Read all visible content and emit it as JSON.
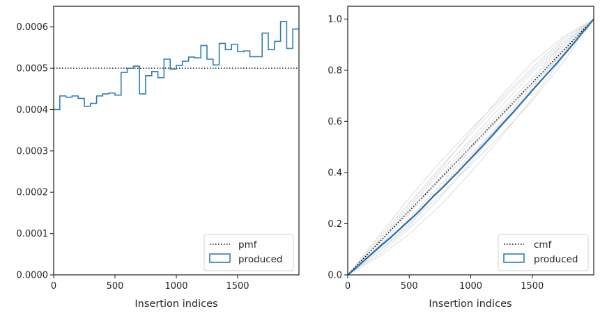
{
  "chart_data": [
    {
      "type": "step",
      "xlabel": "Insertion indices",
      "ylabel": "",
      "xlim": [
        0,
        2000
      ],
      "ylim": [
        0,
        0.00065
      ],
      "xticks": [
        0,
        500,
        1000,
        1500
      ],
      "xtick_labels": [
        "0",
        "500",
        "1000",
        "1500"
      ],
      "yticks": [
        0,
        0.0001,
        0.0002,
        0.0003,
        0.0004,
        0.0005,
        0.0006
      ],
      "ytick_labels": [
        "0.0000",
        "0.0001",
        "0.0002",
        "0.0003",
        "0.0004",
        "0.0005",
        "0.0006"
      ],
      "legend_position": "lower-right",
      "pmf": {
        "name": "pmf",
        "value": 0.0005,
        "style": "dotted",
        "color": "#000000"
      },
      "produced": {
        "name": "produced",
        "color": "#2f7fb3",
        "bin_width": 50,
        "values": [
          0.0004,
          0.000433,
          0.00043,
          0.000433,
          0.000427,
          0.000408,
          0.000415,
          0.000433,
          0.000438,
          0.00044,
          0.000435,
          0.00049,
          0.0005,
          0.000505,
          0.000438,
          0.000482,
          0.000492,
          0.000477,
          0.000522,
          0.000498,
          0.000507,
          0.000517,
          0.000527,
          0.000525,
          0.000555,
          0.000522,
          0.000508,
          0.00056,
          0.000545,
          0.000558,
          0.00054,
          0.000542,
          0.000528,
          0.000528,
          0.000585,
          0.000545,
          0.000565,
          0.000613,
          0.000548,
          0.000595
        ]
      }
    },
    {
      "type": "line",
      "xlabel": "Insertion indices",
      "ylabel": "",
      "xlim": [
        0,
        2000
      ],
      "ylim": [
        0,
        1.05
      ],
      "xticks": [
        0,
        500,
        1000,
        1500
      ],
      "xtick_labels": [
        "0",
        "500",
        "1000",
        "1500"
      ],
      "yticks": [
        0,
        0.2,
        0.4,
        0.6,
        0.8,
        1.0
      ],
      "ytick_labels": [
        "0.0",
        "0.2",
        "0.4",
        "0.6",
        "0.8",
        "1.0"
      ],
      "legend_position": "lower-right",
      "cmf": {
        "name": "cmf",
        "points": [
          [
            0,
            0
          ],
          [
            2000,
            1
          ]
        ],
        "style": "dotted",
        "color": "#000000"
      },
      "produced": {
        "name": "produced",
        "color": "#2f7fb3"
      },
      "background_color": "#d8d8d8",
      "background_curves": [
        [
          [
            0,
            0
          ],
          [
            250,
            0.1
          ],
          [
            500,
            0.22
          ],
          [
            750,
            0.35
          ],
          [
            1000,
            0.49
          ],
          [
            1250,
            0.62
          ],
          [
            1500,
            0.75
          ],
          [
            1750,
            0.88
          ],
          [
            2000,
            1
          ]
        ],
        [
          [
            0,
            0
          ],
          [
            250,
            0.14
          ],
          [
            500,
            0.28
          ],
          [
            750,
            0.42
          ],
          [
            1000,
            0.55
          ],
          [
            1250,
            0.68
          ],
          [
            1500,
            0.8
          ],
          [
            1750,
            0.91
          ],
          [
            2000,
            1
          ]
        ],
        [
          [
            0,
            0
          ],
          [
            250,
            0.08
          ],
          [
            500,
            0.18
          ],
          [
            750,
            0.3
          ],
          [
            1000,
            0.44
          ],
          [
            1250,
            0.58
          ],
          [
            1500,
            0.72
          ],
          [
            1750,
            0.86
          ],
          [
            2000,
            1
          ]
        ],
        [
          [
            0,
            0
          ],
          [
            250,
            0.12
          ],
          [
            500,
            0.26
          ],
          [
            750,
            0.4
          ],
          [
            1000,
            0.53
          ],
          [
            1250,
            0.66
          ],
          [
            1500,
            0.79
          ],
          [
            1750,
            0.9
          ],
          [
            2000,
            1
          ]
        ],
        [
          [
            0,
            0
          ],
          [
            250,
            0.09
          ],
          [
            500,
            0.2
          ],
          [
            750,
            0.31
          ],
          [
            1000,
            0.43
          ],
          [
            1250,
            0.55
          ],
          [
            1500,
            0.68
          ],
          [
            1750,
            0.83
          ],
          [
            2000,
            1
          ]
        ],
        [
          [
            0,
            0
          ],
          [
            250,
            0.13
          ],
          [
            500,
            0.27
          ],
          [
            750,
            0.41
          ],
          [
            1000,
            0.56
          ],
          [
            1250,
            0.7
          ],
          [
            1500,
            0.83
          ],
          [
            1750,
            0.93
          ],
          [
            2000,
            1
          ]
        ],
        [
          [
            0,
            0
          ],
          [
            250,
            0.11
          ],
          [
            500,
            0.24
          ],
          [
            750,
            0.37
          ],
          [
            1000,
            0.5
          ],
          [
            1250,
            0.63
          ],
          [
            1500,
            0.76
          ],
          [
            1750,
            0.89
          ],
          [
            2000,
            1
          ]
        ],
        [
          [
            0,
            0
          ],
          [
            250,
            0.07
          ],
          [
            500,
            0.16
          ],
          [
            750,
            0.27
          ],
          [
            1000,
            0.4
          ],
          [
            1250,
            0.54
          ],
          [
            1500,
            0.69
          ],
          [
            1750,
            0.85
          ],
          [
            2000,
            1
          ]
        ],
        [
          [
            0,
            0
          ],
          [
            250,
            0.15
          ],
          [
            500,
            0.3
          ],
          [
            750,
            0.44
          ],
          [
            1000,
            0.57
          ],
          [
            1250,
            0.69
          ],
          [
            1500,
            0.81
          ],
          [
            1750,
            0.92
          ],
          [
            2000,
            1
          ]
        ],
        [
          [
            0,
            0
          ],
          [
            250,
            0.1
          ],
          [
            500,
            0.21
          ],
          [
            750,
            0.33
          ],
          [
            1000,
            0.46
          ],
          [
            1250,
            0.6
          ],
          [
            1500,
            0.74
          ],
          [
            1750,
            0.87
          ],
          [
            2000,
            1
          ]
        ],
        [
          [
            0,
            0
          ],
          [
            250,
            0.12
          ],
          [
            500,
            0.25
          ],
          [
            750,
            0.38
          ],
          [
            1000,
            0.52
          ],
          [
            1250,
            0.64
          ],
          [
            1500,
            0.77
          ],
          [
            1750,
            0.9
          ],
          [
            2000,
            1
          ]
        ],
        [
          [
            0,
            0
          ],
          [
            250,
            0.09
          ],
          [
            500,
            0.19
          ],
          [
            750,
            0.34
          ],
          [
            1000,
            0.47
          ],
          [
            1250,
            0.59
          ],
          [
            1500,
            0.73
          ],
          [
            1750,
            0.87
          ],
          [
            2000,
            1
          ]
        ]
      ]
    }
  ]
}
